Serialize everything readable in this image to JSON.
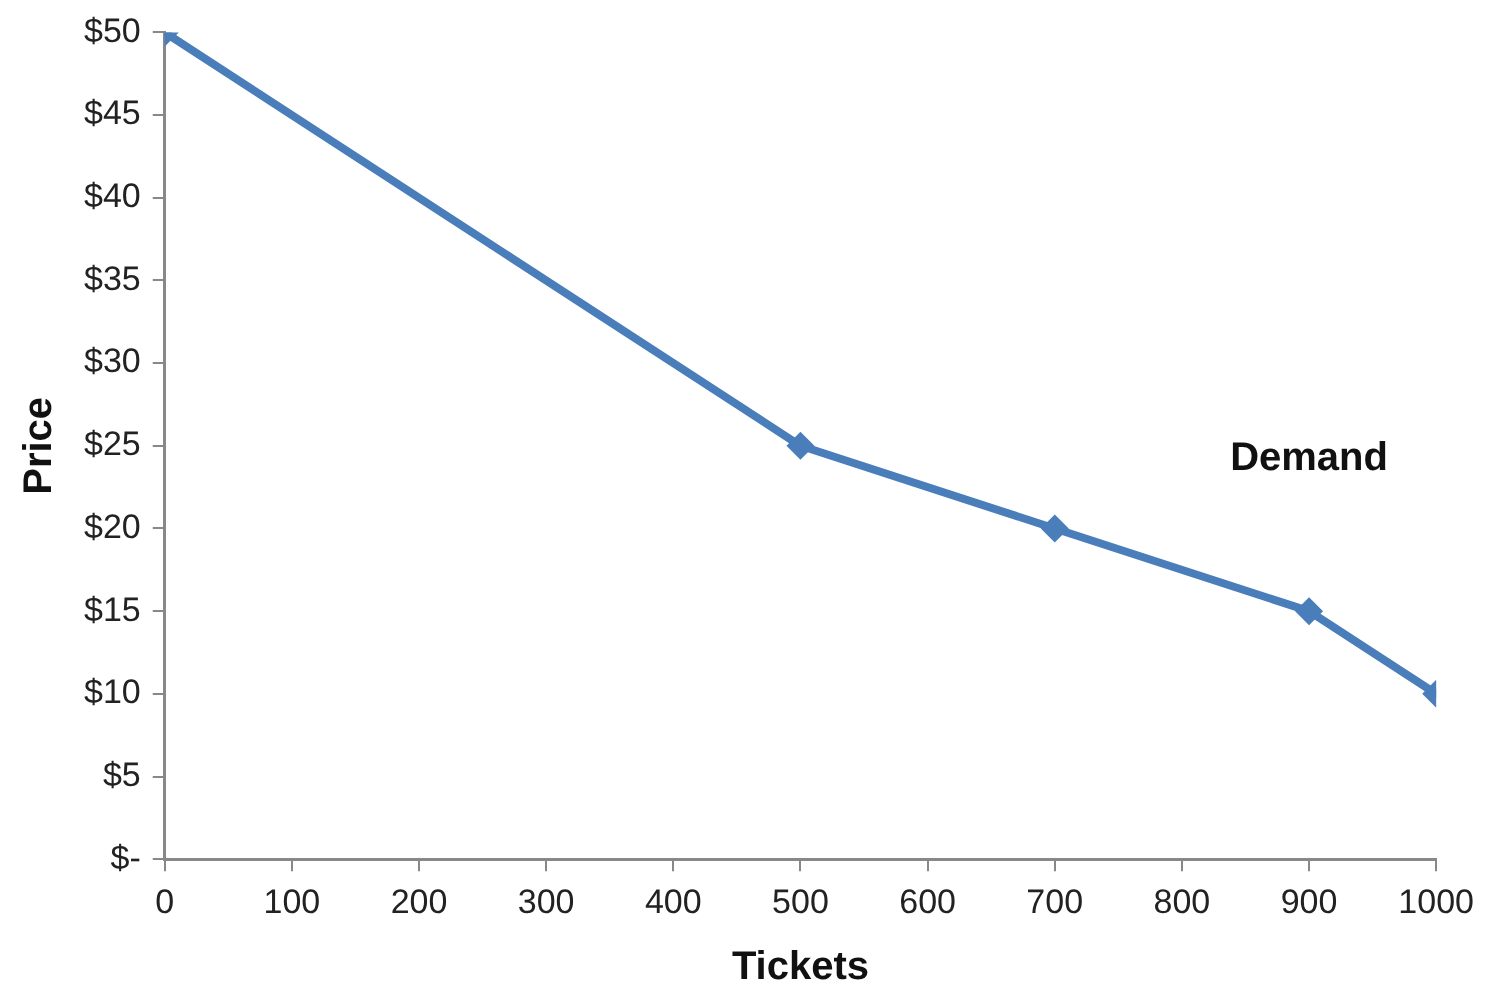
{
  "chart_data": {
    "type": "line",
    "xlabel": "Tickets",
    "ylabel": "Price",
    "x": [
      0,
      500,
      700,
      900,
      1000
    ],
    "series": [
      {
        "name": "Demand",
        "color": "#4a7ebb",
        "values": [
          50,
          25,
          20,
          15,
          10
        ]
      }
    ],
    "xlim": [
      0,
      1000
    ],
    "xticks": [
      0,
      100,
      200,
      300,
      400,
      500,
      600,
      700,
      800,
      900,
      1000
    ],
    "ylim": [
      0,
      50
    ],
    "yticks": [
      {
        "value": 0,
        "label": "$-"
      },
      {
        "value": 5,
        "label": "$5"
      },
      {
        "value": 10,
        "label": "$10"
      },
      {
        "value": 15,
        "label": "$15"
      },
      {
        "value": 20,
        "label": "$20"
      },
      {
        "value": 25,
        "label": "$25"
      },
      {
        "value": 30,
        "label": "$30"
      },
      {
        "value": 35,
        "label": "$35"
      },
      {
        "value": 40,
        "label": "$40"
      },
      {
        "value": 45,
        "label": "$45"
      },
      {
        "value": 50,
        "label": "$50"
      }
    ],
    "grid": false,
    "legend": false,
    "marker": "diamond",
    "line_style": "solid"
  }
}
